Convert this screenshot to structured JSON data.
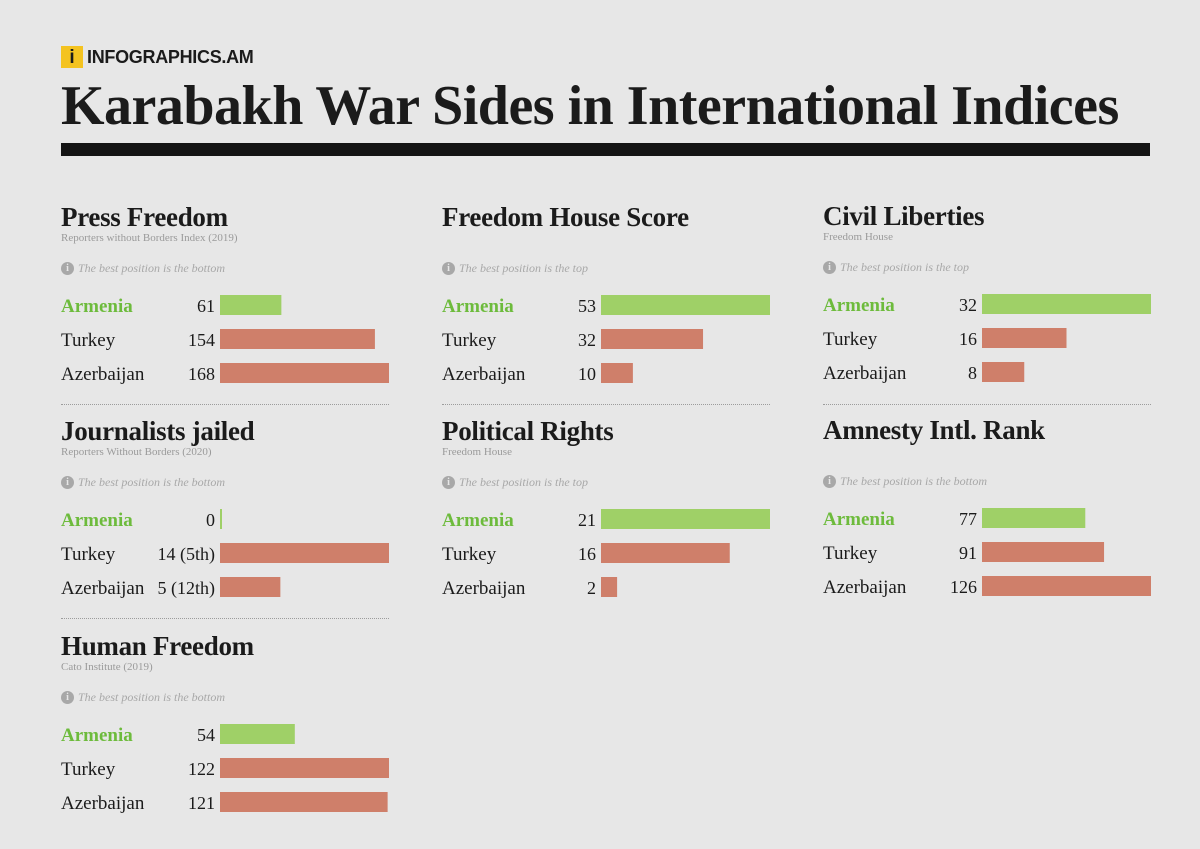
{
  "brand": {
    "logo_letter": "i",
    "name": "INFOGRAPHICS.AM",
    "logo_color": "#f4c320"
  },
  "title": "Karabakh War Sides in International Indices",
  "hint_icon": "info-icon",
  "colors": {
    "highlight": "#9fd067",
    "other": "#cf7f6a",
    "highlight_text": "#6dbb3c"
  },
  "chart_data": [
    {
      "type": "bar",
      "title": "Press Freedom",
      "subtitle": "Reporters without Borders Index (2019)",
      "note": "The best position is the bottom",
      "categories": [
        "Armenia",
        "Turkey",
        "Azerbaijan"
      ],
      "values": [
        61,
        154,
        168
      ],
      "value_labels": [
        "61",
        "154",
        "168"
      ],
      "highlight": "Armenia"
    },
    {
      "type": "bar",
      "title": "Freedom House Score",
      "subtitle": "",
      "note": "The best position is the top",
      "categories": [
        "Armenia",
        "Turkey",
        "Azerbaijan"
      ],
      "values": [
        53,
        32,
        10
      ],
      "value_labels": [
        "53",
        "32",
        "10"
      ],
      "highlight": "Armenia"
    },
    {
      "type": "bar",
      "title": "Civil Liberties",
      "subtitle": "Freedom House",
      "note": "The best position is the top",
      "categories": [
        "Armenia",
        "Turkey",
        "Azerbaijan"
      ],
      "values": [
        32,
        16,
        8
      ],
      "value_labels": [
        "32",
        "16",
        "8"
      ],
      "highlight": "Armenia"
    },
    {
      "type": "bar",
      "title": "Journalists jailed",
      "subtitle": "Reporters Without Borders (2020)",
      "note": "The best position is the bottom",
      "categories": [
        "Armenia",
        "Turkey",
        "Azerbaijan"
      ],
      "values": [
        0,
        14,
        5
      ],
      "value_labels": [
        "0",
        "14 (5th)",
        "5 (12th)"
      ],
      "highlight": "Armenia"
    },
    {
      "type": "bar",
      "title": "Political Rights",
      "subtitle": "Freedom House",
      "note": "The best position is the top",
      "categories": [
        "Armenia",
        "Turkey",
        "Azerbaijan"
      ],
      "values": [
        21,
        16,
        2
      ],
      "value_labels": [
        "21",
        "16",
        "2"
      ],
      "highlight": "Armenia"
    },
    {
      "type": "bar",
      "title": "Amnesty Intl. Rank",
      "subtitle": "",
      "note": "The best position is the bottom",
      "categories": [
        "Armenia",
        "Turkey",
        "Azerbaijan"
      ],
      "values": [
        77,
        91,
        126
      ],
      "value_labels": [
        "77",
        "91",
        "126"
      ],
      "highlight": "Armenia"
    },
    {
      "type": "bar",
      "title": "Human Freedom",
      "subtitle": "Cato Institute (2019)",
      "note": "The best position is the bottom",
      "categories": [
        "Armenia",
        "Turkey",
        "Azerbaijan"
      ],
      "values": [
        54,
        122,
        121
      ],
      "value_labels": [
        "54",
        "122",
        "121"
      ],
      "highlight": "Armenia"
    }
  ]
}
